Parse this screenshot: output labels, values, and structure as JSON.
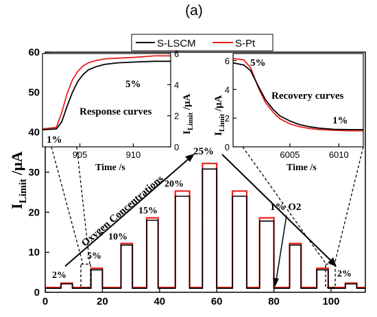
{
  "panel_label": "(a)",
  "colors": {
    "S-LSCM": "#000000",
    "S-Pt": "#e8201a"
  },
  "legend": {
    "placement": "top-center",
    "items": [
      "S-LSCM",
      "S-Pt"
    ]
  },
  "chart_data": [
    {
      "type": "line",
      "role": "main",
      "ylabel_main": "I",
      "ylabel_sub": "Limit",
      "ylabel_unit": " /μA",
      "xlim": [
        0,
        112
      ],
      "ylim": [
        0,
        60
      ],
      "xticks": [
        0,
        20,
        40,
        60,
        80,
        100
      ],
      "yticks": [
        0,
        10,
        20,
        30,
        40,
        50,
        60
      ],
      "concentration_labels": [
        "2%",
        "5%",
        "10%",
        "15%",
        "20%",
        "25%",
        "2%"
      ],
      "arrow_label": "Oxygen Concentrations",
      "annotation_1pct": "1% O2",
      "baseline": {
        "S-LSCM": 1.0,
        "S-Pt": 1.2
      },
      "pulses": [
        {
          "start": 5.5,
          "end": 9.5,
          "conc": "2%",
          "S-LSCM": 2.1,
          "S-Pt": 2.3
        },
        {
          "start": 16,
          "end": 20,
          "conc": "5%",
          "S-LSCM": 5.6,
          "S-Pt": 6.0
        },
        {
          "start": 26.5,
          "end": 30.5,
          "conc": "10%",
          "S-LSCM": 11.8,
          "S-Pt": 12.2
        },
        {
          "start": 35.5,
          "end": 39.5,
          "conc": "15%",
          "S-LSCM": 18.0,
          "S-Pt": 18.6
        },
        {
          "start": 45.5,
          "end": 50.5,
          "conc": "20%",
          "S-LSCM": 24.0,
          "S-Pt": 25.3
        },
        {
          "start": 55,
          "end": 60,
          "conc": "25%",
          "S-LSCM": 30.8,
          "S-Pt": 32.2
        },
        {
          "start": 65.5,
          "end": 70.5,
          "conc": "20%",
          "S-LSCM": 24.0,
          "S-Pt": 25.3
        },
        {
          "start": 75,
          "end": 80,
          "conc": "15%",
          "S-LSCM": 17.8,
          "S-Pt": 18.6
        },
        {
          "start": 85.5,
          "end": 89.5,
          "conc": "10%",
          "S-LSCM": 11.8,
          "S-Pt": 12.2
        },
        {
          "start": 95,
          "end": 99,
          "conc": "5%",
          "S-LSCM": 5.6,
          "S-Pt": 6.0
        },
        {
          "start": 105,
          "end": 109,
          "conc": "2%",
          "S-LSCM": 2.1,
          "S-Pt": 2.3
        }
      ],
      "series": [
        {
          "name": "S-LSCM"
        },
        {
          "name": "S-Pt"
        }
      ]
    },
    {
      "type": "line",
      "role": "inset-response",
      "title": "Response curves",
      "xlabel": "Time /s",
      "ylabel_main": "I",
      "ylabel_sub": "Limit",
      "ylabel_unit": " /μA",
      "xlim": [
        901.5,
        913.5
      ],
      "ylim": [
        0,
        6
      ],
      "xticks": [
        905,
        910
      ],
      "yticks": [
        0,
        2,
        4,
        6
      ],
      "labels": [
        "1%",
        "5%"
      ],
      "x": [
        901.5,
        902.8,
        903.3,
        903.8,
        904.3,
        904.8,
        905.3,
        905.8,
        906.5,
        907.3,
        908.5,
        910,
        912,
        913.5
      ],
      "series": [
        {
          "name": "S-LSCM",
          "values": [
            1.1,
            1.15,
            1.6,
            2.6,
            3.5,
            4.2,
            4.65,
            4.95,
            5.15,
            5.3,
            5.4,
            5.45,
            5.5,
            5.5
          ]
        },
        {
          "name": "S-Pt",
          "values": [
            1.15,
            1.25,
            2.2,
            3.4,
            4.3,
            4.85,
            5.2,
            5.4,
            5.55,
            5.65,
            5.7,
            5.75,
            5.85,
            5.85
          ]
        }
      ]
    },
    {
      "type": "line",
      "role": "inset-recovery",
      "title": "Recovery curves",
      "xlabel": "Time /s",
      "ylabel_main": "I",
      "ylabel_sub": "Limit",
      "ylabel_unit": " /μA",
      "xlim": [
        5999.2,
        6012.5
      ],
      "ylim": [
        0,
        6.5
      ],
      "xticks": [
        6005,
        6010
      ],
      "yticks": [
        0,
        2,
        4,
        6
      ],
      "labels": [
        "5%",
        "1%"
      ],
      "x": [
        5999.2,
        6000.3,
        6001,
        6001.8,
        6002.5,
        6003.3,
        6004,
        6005,
        6006,
        6007,
        6008,
        6009.5,
        6011,
        6012.5
      ],
      "series": [
        {
          "name": "S-LSCM",
          "values": [
            5.85,
            5.7,
            5.3,
            4.2,
            3.3,
            2.6,
            2.15,
            1.8,
            1.55,
            1.4,
            1.3,
            1.22,
            1.2,
            1.2
          ]
        },
        {
          "name": "S-Pt",
          "values": [
            6.15,
            6.05,
            5.5,
            4.1,
            3.1,
            2.4,
            1.95,
            1.6,
            1.4,
            1.28,
            1.2,
            1.15,
            1.12,
            1.12
          ]
        }
      ]
    }
  ]
}
